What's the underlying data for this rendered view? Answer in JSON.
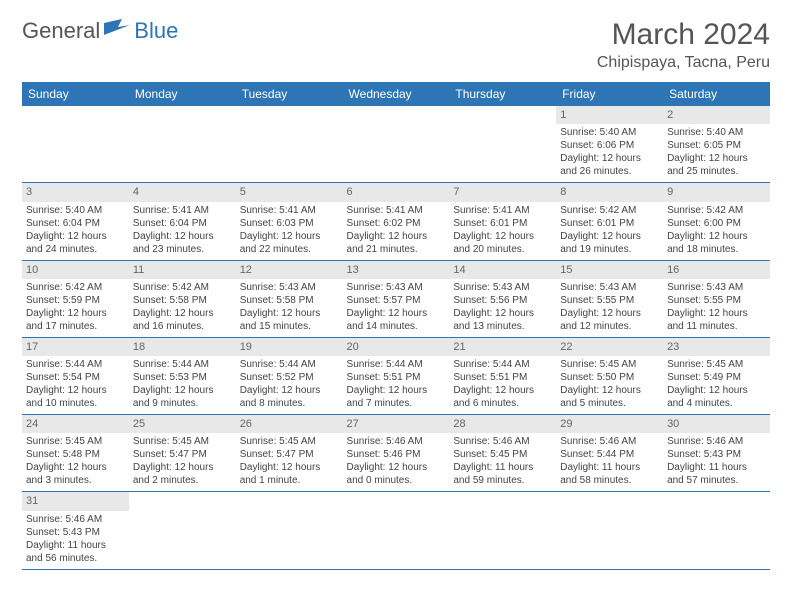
{
  "brand": {
    "part1": "General",
    "part2": "Blue"
  },
  "title": "March 2024",
  "location": "Chipispaya, Tacna, Peru",
  "colors": {
    "accent": "#2e75b6",
    "daynum_bg": "#e8e8e8",
    "text": "#444444"
  },
  "dayHeaders": [
    "Sunday",
    "Monday",
    "Tuesday",
    "Wednesday",
    "Thursday",
    "Friday",
    "Saturday"
  ],
  "startWeekday": 5,
  "days": [
    {
      "n": 1,
      "sunrise": "5:40 AM",
      "sunset": "6:06 PM",
      "daylight": "12 hours and 26 minutes."
    },
    {
      "n": 2,
      "sunrise": "5:40 AM",
      "sunset": "6:05 PM",
      "daylight": "12 hours and 25 minutes."
    },
    {
      "n": 3,
      "sunrise": "5:40 AM",
      "sunset": "6:04 PM",
      "daylight": "12 hours and 24 minutes."
    },
    {
      "n": 4,
      "sunrise": "5:41 AM",
      "sunset": "6:04 PM",
      "daylight": "12 hours and 23 minutes."
    },
    {
      "n": 5,
      "sunrise": "5:41 AM",
      "sunset": "6:03 PM",
      "daylight": "12 hours and 22 minutes."
    },
    {
      "n": 6,
      "sunrise": "5:41 AM",
      "sunset": "6:02 PM",
      "daylight": "12 hours and 21 minutes."
    },
    {
      "n": 7,
      "sunrise": "5:41 AM",
      "sunset": "6:01 PM",
      "daylight": "12 hours and 20 minutes."
    },
    {
      "n": 8,
      "sunrise": "5:42 AM",
      "sunset": "6:01 PM",
      "daylight": "12 hours and 19 minutes."
    },
    {
      "n": 9,
      "sunrise": "5:42 AM",
      "sunset": "6:00 PM",
      "daylight": "12 hours and 18 minutes."
    },
    {
      "n": 10,
      "sunrise": "5:42 AM",
      "sunset": "5:59 PM",
      "daylight": "12 hours and 17 minutes."
    },
    {
      "n": 11,
      "sunrise": "5:42 AM",
      "sunset": "5:58 PM",
      "daylight": "12 hours and 16 minutes."
    },
    {
      "n": 12,
      "sunrise": "5:43 AM",
      "sunset": "5:58 PM",
      "daylight": "12 hours and 15 minutes."
    },
    {
      "n": 13,
      "sunrise": "5:43 AM",
      "sunset": "5:57 PM",
      "daylight": "12 hours and 14 minutes."
    },
    {
      "n": 14,
      "sunrise": "5:43 AM",
      "sunset": "5:56 PM",
      "daylight": "12 hours and 13 minutes."
    },
    {
      "n": 15,
      "sunrise": "5:43 AM",
      "sunset": "5:55 PM",
      "daylight": "12 hours and 12 minutes."
    },
    {
      "n": 16,
      "sunrise": "5:43 AM",
      "sunset": "5:55 PM",
      "daylight": "12 hours and 11 minutes."
    },
    {
      "n": 17,
      "sunrise": "5:44 AM",
      "sunset": "5:54 PM",
      "daylight": "12 hours and 10 minutes."
    },
    {
      "n": 18,
      "sunrise": "5:44 AM",
      "sunset": "5:53 PM",
      "daylight": "12 hours and 9 minutes."
    },
    {
      "n": 19,
      "sunrise": "5:44 AM",
      "sunset": "5:52 PM",
      "daylight": "12 hours and 8 minutes."
    },
    {
      "n": 20,
      "sunrise": "5:44 AM",
      "sunset": "5:51 PM",
      "daylight": "12 hours and 7 minutes."
    },
    {
      "n": 21,
      "sunrise": "5:44 AM",
      "sunset": "5:51 PM",
      "daylight": "12 hours and 6 minutes."
    },
    {
      "n": 22,
      "sunrise": "5:45 AM",
      "sunset": "5:50 PM",
      "daylight": "12 hours and 5 minutes."
    },
    {
      "n": 23,
      "sunrise": "5:45 AM",
      "sunset": "5:49 PM",
      "daylight": "12 hours and 4 minutes."
    },
    {
      "n": 24,
      "sunrise": "5:45 AM",
      "sunset": "5:48 PM",
      "daylight": "12 hours and 3 minutes."
    },
    {
      "n": 25,
      "sunrise": "5:45 AM",
      "sunset": "5:47 PM",
      "daylight": "12 hours and 2 minutes."
    },
    {
      "n": 26,
      "sunrise": "5:45 AM",
      "sunset": "5:47 PM",
      "daylight": "12 hours and 1 minute."
    },
    {
      "n": 27,
      "sunrise": "5:46 AM",
      "sunset": "5:46 PM",
      "daylight": "12 hours and 0 minutes."
    },
    {
      "n": 28,
      "sunrise": "5:46 AM",
      "sunset": "5:45 PM",
      "daylight": "11 hours and 59 minutes."
    },
    {
      "n": 29,
      "sunrise": "5:46 AM",
      "sunset": "5:44 PM",
      "daylight": "11 hours and 58 minutes."
    },
    {
      "n": 30,
      "sunrise": "5:46 AM",
      "sunset": "5:43 PM",
      "daylight": "11 hours and 57 minutes."
    },
    {
      "n": 31,
      "sunrise": "5:46 AM",
      "sunset": "5:43 PM",
      "daylight": "11 hours and 56 minutes."
    }
  ],
  "labels": {
    "sunrise": "Sunrise:",
    "sunset": "Sunset:",
    "daylight": "Daylight:"
  }
}
